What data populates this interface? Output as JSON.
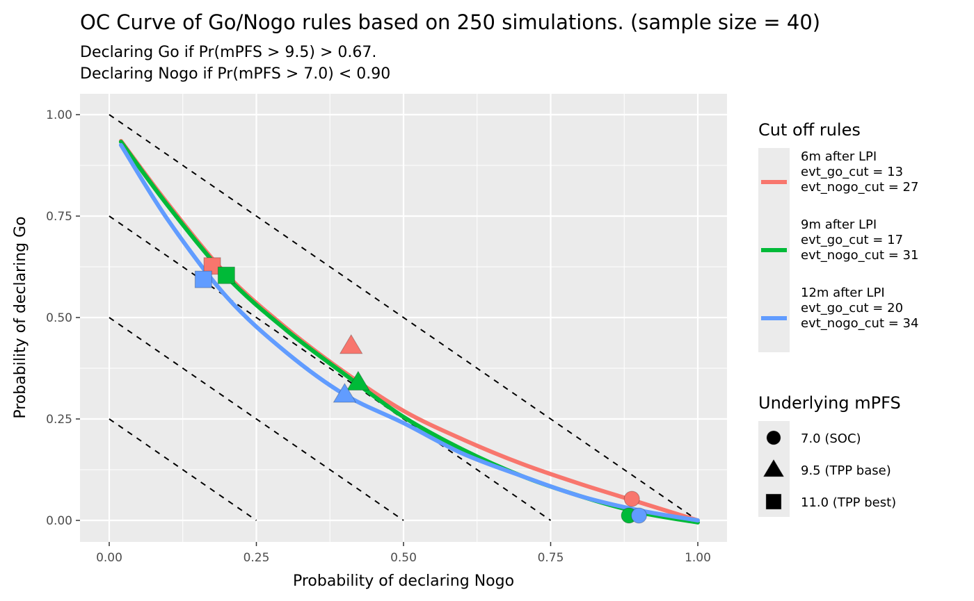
{
  "chart_data": {
    "type": "line",
    "title": "OC Curve of Go/Nogo rules based on 250 simulations. (sample size = 40)",
    "subtitle": [
      "Declaring Go if Pr(mPFS > 9.5) > 0.67.",
      "Declaring Nogo if Pr(mPFS > 7.0) < 0.90"
    ],
    "xlabel": "Probability of declaring Nogo",
    "ylabel": "Probability of declaring Go",
    "xlim": [
      -0.05,
      1.05
    ],
    "ylim": [
      -0.05,
      1.05
    ],
    "xticks": [
      0,
      0.25,
      0.5,
      0.75,
      1.0
    ],
    "xtick_labels": [
      "0.00",
      "0.25",
      "0.50",
      "0.75",
      "1.00"
    ],
    "yticks": [
      0,
      0.25,
      0.5,
      0.75,
      1.0
    ],
    "ytick_labels": [
      "0.00",
      "0.25",
      "0.50",
      "0.75",
      "1.00"
    ],
    "grid": true,
    "reference_lines": {
      "style": "dashed",
      "intercepts": [
        0.25,
        0.5,
        0.75,
        1.0
      ],
      "slope": -1
    },
    "legend_color": {
      "title": "Cut off rules",
      "placement": "right",
      "entries": [
        {
          "lines": [
            "6m after LPI",
            "evt_go_cut = 13",
            "evt_nogo_cut = 27"
          ],
          "color": "#F8766D"
        },
        {
          "lines": [
            "9m after LPI",
            "evt_go_cut = 17",
            "evt_nogo_cut = 31"
          ],
          "color": "#00BA38"
        },
        {
          "lines": [
            "12m after LPI",
            "evt_go_cut = 20",
            "evt_nogo_cut = 34"
          ],
          "color": "#619CFF"
        }
      ]
    },
    "legend_shape": {
      "title": "Underlying mPFS",
      "placement": "right",
      "entries": [
        {
          "label": "7.0 (SOC)",
          "shape": "circle"
        },
        {
          "label": "9.5 (TPP base)",
          "shape": "triangle"
        },
        {
          "label": "11.0 (TPP best)",
          "shape": "square"
        }
      ]
    },
    "series": [
      {
        "name": "6m after LPI",
        "color": "#F8766D",
        "x": [
          0.02,
          0.1,
          0.2,
          0.3,
          0.4,
          0.5,
          0.6,
          0.7,
          0.8,
          0.9,
          1.0
        ],
        "y": [
          0.935,
          0.78,
          0.605,
          0.475,
          0.365,
          0.27,
          0.2,
          0.14,
          0.09,
          0.045,
          0.0
        ],
        "points": [
          {
            "mPFS": "7.0 (SOC)",
            "x": 0.888,
            "y": 0.053
          },
          {
            "mPFS": "9.5 (TPP base)",
            "x": 0.411,
            "y": 0.43
          },
          {
            "mPFS": "11.0 (TPP best)",
            "x": 0.175,
            "y": 0.627
          }
        ]
      },
      {
        "name": "9m after LPI",
        "color": "#00BA38",
        "x": [
          0.02,
          0.1,
          0.2,
          0.3,
          0.4,
          0.5,
          0.6,
          0.7,
          0.8,
          0.9,
          1.0
        ],
        "y": [
          0.933,
          0.775,
          0.6,
          0.47,
          0.36,
          0.255,
          0.175,
          0.11,
          0.06,
          0.02,
          -0.005
        ],
        "points": [
          {
            "mPFS": "7.0 (SOC)",
            "x": 0.883,
            "y": 0.012
          },
          {
            "mPFS": "9.5 (TPP base)",
            "x": 0.423,
            "y": 0.34
          },
          {
            "mPFS": "11.0 (TPP best)",
            "x": 0.199,
            "y": 0.604
          }
        ]
      },
      {
        "name": "12m after LPI",
        "color": "#619CFF",
        "x": [
          0.02,
          0.1,
          0.2,
          0.3,
          0.4,
          0.5,
          0.6,
          0.7,
          0.8,
          0.9,
          1.0
        ],
        "y": [
          0.925,
          0.74,
          0.55,
          0.415,
          0.31,
          0.24,
          0.165,
          0.11,
          0.06,
          0.025,
          0.0
        ],
        "points": [
          {
            "mPFS": "7.0 (SOC)",
            "x": 0.9,
            "y": 0.012
          },
          {
            "mPFS": "9.5 (TPP base)",
            "x": 0.4,
            "y": 0.31
          },
          {
            "mPFS": "11.0 (TPP best)",
            "x": 0.16,
            "y": 0.594
          }
        ]
      }
    ]
  }
}
